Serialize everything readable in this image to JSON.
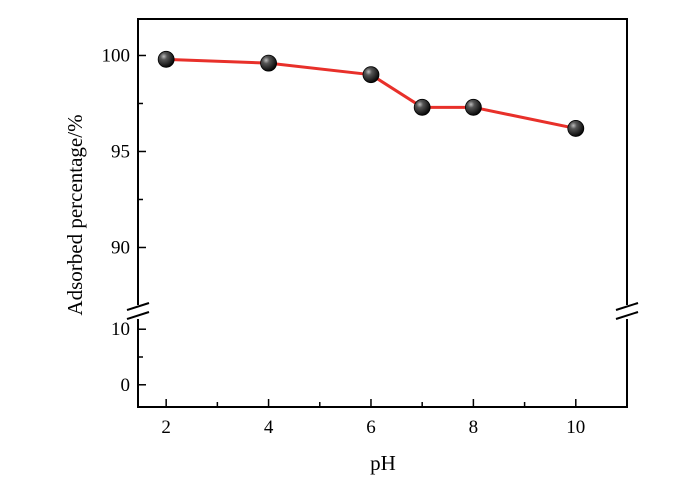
{
  "chart_data": {
    "type": "line",
    "xlabel": "pH",
    "ylabel": "Adsorbed percentage/%",
    "xlim": [
      1.45,
      11.0
    ],
    "x_ticks": [
      2,
      4,
      6,
      8,
      10
    ],
    "y_axis_break": true,
    "y_segments": [
      {
        "range": [
          -4,
          14
        ],
        "ticks": [
          0,
          10
        ]
      },
      {
        "range": [
          86.9,
          101.9
        ],
        "ticks": [
          90,
          95,
          100
        ]
      }
    ],
    "grid": false,
    "legend": "none",
    "series": [
      {
        "x": [
          2,
          4,
          6,
          7,
          8,
          10
        ],
        "y": [
          99.8,
          99.6,
          99.0,
          97.3,
          97.3,
          96.2
        ],
        "line_color": "#e8302a",
        "marker": "sphere",
        "marker_color": "#111111"
      }
    ]
  }
}
